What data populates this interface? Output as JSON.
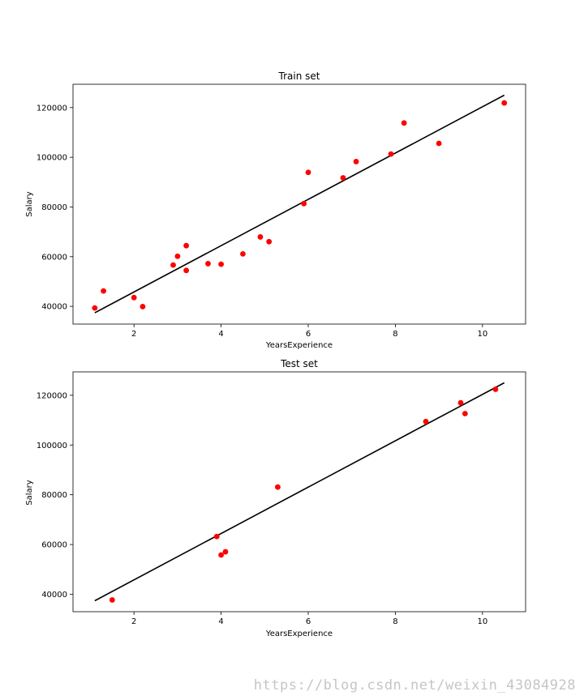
{
  "colors": {
    "points": "#ff0000",
    "line": "#000000",
    "axes": "#000000"
  },
  "chart_data": [
    {
      "type": "scatter",
      "title": "Train set",
      "xlabel": "YearsExperience",
      "ylabel": "Salary",
      "xlim": [
        0.6,
        10.99
      ],
      "ylim": [
        32864,
        129400
      ],
      "xticks": [
        2,
        4,
        6,
        8,
        10
      ],
      "yticks": [
        40000,
        60000,
        80000,
        100000,
        120000
      ],
      "grid": false,
      "legend": false,
      "points": [
        {
          "x": 1.1,
          "y": 39343
        },
        {
          "x": 1.3,
          "y": 46205
        },
        {
          "x": 2.0,
          "y": 43525
        },
        {
          "x": 2.2,
          "y": 39891
        },
        {
          "x": 2.9,
          "y": 56642
        },
        {
          "x": 3.0,
          "y": 60150
        },
        {
          "x": 3.2,
          "y": 54445
        },
        {
          "x": 3.2,
          "y": 64445
        },
        {
          "x": 3.7,
          "y": 57189
        },
        {
          "x": 4.0,
          "y": 56957
        },
        {
          "x": 4.5,
          "y": 61111
        },
        {
          "x": 4.9,
          "y": 67938
        },
        {
          "x": 5.1,
          "y": 66029
        },
        {
          "x": 5.9,
          "y": 81363
        },
        {
          "x": 6.0,
          "y": 93940
        },
        {
          "x": 6.8,
          "y": 91738
        },
        {
          "x": 7.1,
          "y": 98273
        },
        {
          "x": 7.9,
          "y": 101302
        },
        {
          "x": 8.2,
          "y": 113812
        },
        {
          "x": 9.0,
          "y": 105582
        },
        {
          "x": 10.5,
          "y": 121872
        }
      ],
      "regression_line": {
        "x": [
          1.1,
          10.5
        ],
        "y": [
          37400,
          125000
        ]
      }
    },
    {
      "type": "scatter",
      "title": "Test set",
      "xlabel": "YearsExperience",
      "ylabel": "Salary",
      "xlim": [
        0.6,
        10.99
      ],
      "ylim": [
        33000,
        129400
      ],
      "xticks": [
        2,
        4,
        6,
        8,
        10
      ],
      "yticks": [
        40000,
        60000,
        80000,
        100000,
        120000
      ],
      "grid": false,
      "legend": false,
      "points": [
        {
          "x": 1.5,
          "y": 37731
        },
        {
          "x": 3.9,
          "y": 63218
        },
        {
          "x": 4.0,
          "y": 55794
        },
        {
          "x": 4.1,
          "y": 57081
        },
        {
          "x": 5.3,
          "y": 83088
        },
        {
          "x": 8.7,
          "y": 109431
        },
        {
          "x": 9.5,
          "y": 116969
        },
        {
          "x": 9.6,
          "y": 112635
        },
        {
          "x": 10.3,
          "y": 122391
        }
      ],
      "regression_line": {
        "x": [
          1.1,
          10.5
        ],
        "y": [
          37400,
          125000
        ]
      }
    }
  ],
  "watermark": {
    "text": "https://blog.csdn.net/weixin_43084928"
  }
}
